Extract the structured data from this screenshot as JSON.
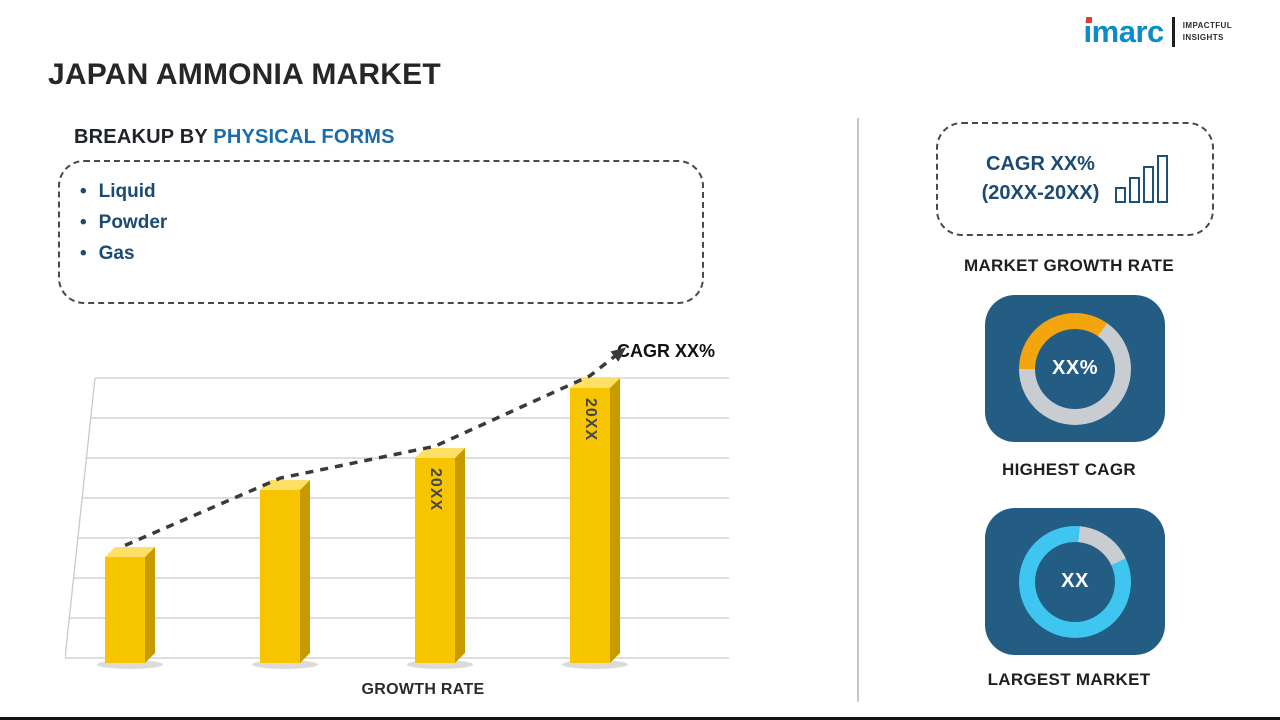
{
  "header": {
    "title": "JAPAN AMMONIA MARKET",
    "logo": {
      "brand": "imarc",
      "tagline_line1": "IMPACTFUL",
      "tagline_line2": "INSIGHTS"
    }
  },
  "left": {
    "heading_prefix": "BREAKUP BY ",
    "heading_highlight": "PHYSICAL FORMS",
    "items": [
      "Liquid",
      "Powder",
      "Gas"
    ]
  },
  "chart_data": {
    "type": "bar",
    "categories": [
      "",
      "",
      "",
      ""
    ],
    "values": [
      33,
      54,
      64,
      86
    ],
    "bar_labels": [
      "",
      "",
      "20XX",
      "20XX"
    ],
    "title": "",
    "xlabel": "GROWTH RATE",
    "ylabel": "",
    "ylim": [
      0,
      100
    ],
    "grid": true,
    "legend": false,
    "bar_color": "#F6C500",
    "trend_label": "CAGR XX%",
    "trend_style": "dashed-arrow"
  },
  "sidebar": {
    "growth_box": {
      "line1": "CAGR XX%",
      "line2": "(20XX-20XX)",
      "icon": "bar-chart-icon"
    },
    "market_growth_label": "MARKET GROWTH RATE",
    "highest_cagr": {
      "value": "XX%",
      "label": "HIGHEST CAGR",
      "donut": {
        "start_deg": -90,
        "sweep_deg": 125,
        "accent_color": "#F2A50C",
        "base_color": "#C9CDD1"
      }
    },
    "largest_market": {
      "value": "XX",
      "label": "LARGEST MARKET",
      "donut": {
        "start_deg": 5,
        "sweep_deg": 60,
        "accent_color": "#C9CDD1",
        "base_color": "#3EC6F0"
      }
    }
  },
  "colors": {
    "accent_blue": "#1B6CA8",
    "navy": "#1B4A73",
    "card_blue": "#245D84",
    "bar_yellow": "#F6C500"
  }
}
